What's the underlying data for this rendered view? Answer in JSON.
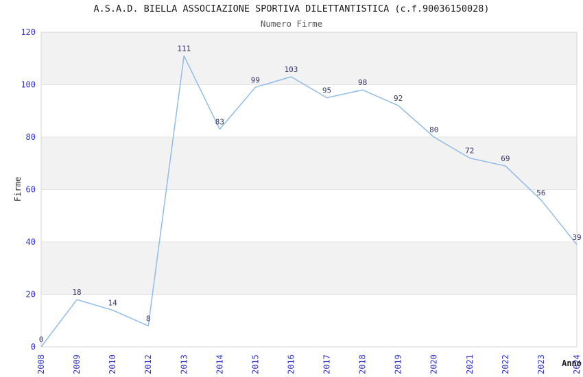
{
  "chart_data": {
    "type": "line",
    "title": "A.S.A.D. BIELLA ASSOCIAZIONE SPORTIVA DILETTANTISTICA (c.f.90036150028)",
    "subtitle": "Numero Firme",
    "xlabel": "Anno",
    "ylabel": "Firme",
    "categories": [
      "2008",
      "2009",
      "2010",
      "2012",
      "2013",
      "2014",
      "2015",
      "2016",
      "2017",
      "2018",
      "2019",
      "2020",
      "2021",
      "2022",
      "2023",
      "2024"
    ],
    "values": [
      0,
      18,
      14,
      8,
      111,
      83,
      99,
      103,
      95,
      98,
      92,
      80,
      72,
      69,
      56,
      39
    ],
    "ylim": [
      0,
      120
    ],
    "ytick_step": 20,
    "yticks": [
      0,
      20,
      40,
      60,
      80,
      100,
      120
    ],
    "grid": "horizontal-bands-alternating",
    "legend": "none",
    "point_labels_visible": true,
    "x_tick_rotation_deg": -90,
    "colors": {
      "line": "#90bce8",
      "tick_label": "#3333cc",
      "data_label": "#333366",
      "band": "#f2f2f2",
      "band_line": "#e4e4e4",
      "plot_border": "#d6d6d6",
      "title": "#1a1a1a",
      "subtitle": "#555555",
      "axis_title": "#333333"
    }
  }
}
